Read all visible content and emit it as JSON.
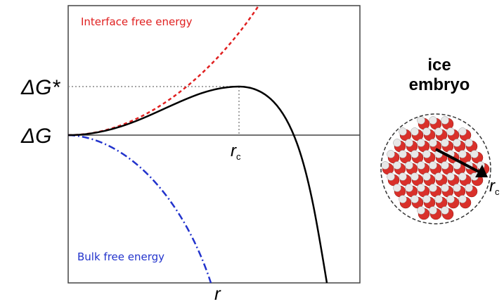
{
  "plot": {
    "interface_label": "Interface free energy",
    "bulk_label": "Bulk free energy",
    "barrier_label": "ΔG*",
    "zero_label": "ΔG",
    "critical_radius": {
      "base": "r",
      "subscript": "c"
    },
    "x_axis_label": "r"
  },
  "embryo": {
    "title_line1": "ice",
    "title_line2": "embryo",
    "radius_label": {
      "base": "r",
      "subscript": "c"
    }
  }
}
